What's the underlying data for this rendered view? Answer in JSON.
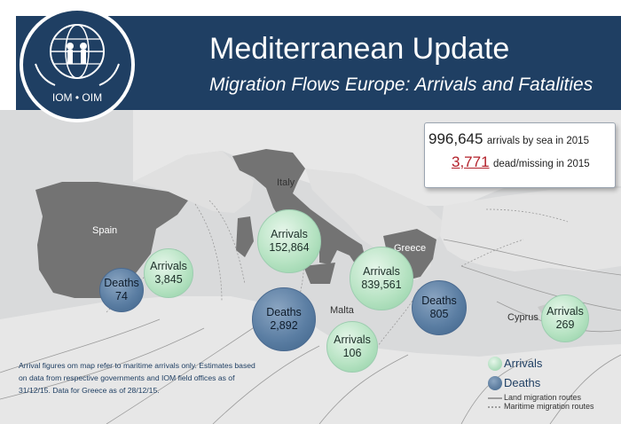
{
  "header": {
    "title": "Mediterranean Update",
    "subtitle": "Migration Flows Europe: Arrivals and Fatalities",
    "logo_text": "IOM • OIM"
  },
  "stats": {
    "arrivals_value": "996,645",
    "arrivals_text": "arrivals by sea in 2015",
    "dead_value": "3,771",
    "dead_text": "dead/missing in 2015"
  },
  "map_labels": {
    "spain": "Spain",
    "italy": "Italy",
    "greece": "Greece",
    "malta": "Malta",
    "cyprus": "Cyprus"
  },
  "bubbles": [
    {
      "kind": "arrivals",
      "label": "Arrivals",
      "value": "3,845"
    },
    {
      "kind": "deaths",
      "label": "Deaths",
      "value": "74"
    },
    {
      "kind": "arrivals",
      "label": "Arrivals",
      "value": "152,864"
    },
    {
      "kind": "deaths",
      "label": "Deaths",
      "value": "2,892"
    },
    {
      "kind": "arrivals",
      "label": "Arrivals",
      "value": "106"
    },
    {
      "kind": "arrivals",
      "label": "Arrivals",
      "value": "839,561"
    },
    {
      "kind": "deaths",
      "label": "Deaths",
      "value": "805"
    },
    {
      "kind": "arrivals",
      "label": "Arrivals",
      "value": "269"
    }
  ],
  "legend": {
    "arrivals": "Arrivals",
    "deaths": "Deaths",
    "land_routes": "Land migration  routes",
    "maritime_routes": "Maritime migration routes"
  },
  "footnote": {
    "line1": "Arrival figures  om map refer to maritime arrivals only. Estimates based",
    "line2": "on data from respective governments and IOM field offices as of",
    "line3": "31/12/15. Data for Greece as of  28/12/15."
  },
  "colors": {
    "header_bg": "#1f3f63",
    "land": "#737373",
    "sea": "#d9dadb",
    "arrivals_bubble": "#b7e3c3",
    "deaths_bubble": "#5b7ea3",
    "dead_number": "#b3202a"
  }
}
